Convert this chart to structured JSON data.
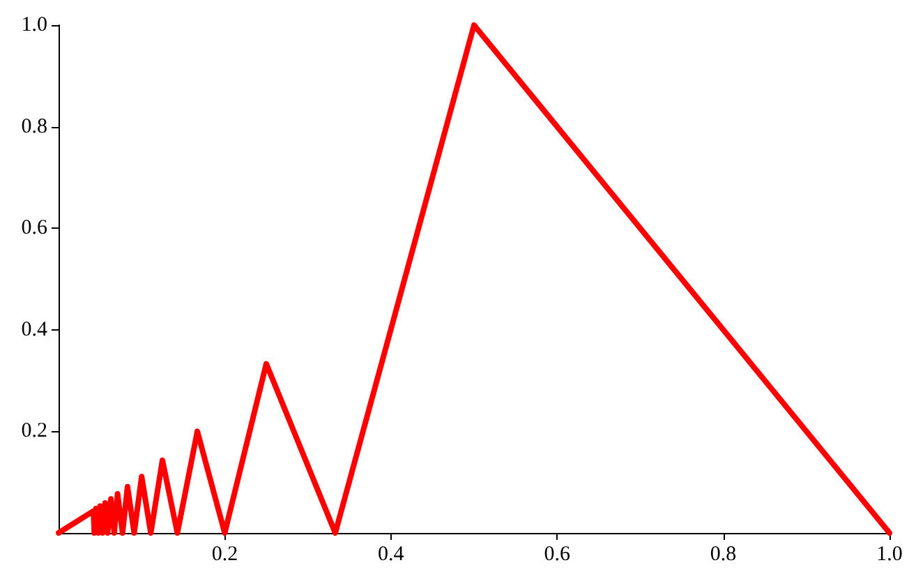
{
  "chart_data": {
    "type": "line",
    "x": [
      0,
      0.042,
      0.043,
      0.045,
      0.048,
      0.05,
      0.053,
      0.056,
      0.059,
      0.063,
      0.067,
      0.071,
      0.077,
      0.083,
      0.091,
      0.1,
      0.111,
      0.125,
      0.143,
      0.167,
      0.2,
      0.25,
      0.333,
      0.5,
      1
    ],
    "series": [
      {
        "color": "#ff0000",
        "values": [
          0,
          0.043,
          0,
          0.048,
          0,
          0.053,
          0,
          0.059,
          0,
          0.067,
          0,
          0.077,
          0,
          0.091,
          0,
          0.111,
          0,
          0.143,
          0,
          0.2,
          0,
          0.333,
          0,
          1,
          0
        ]
      }
    ],
    "xlim": [
      0,
      1
    ],
    "xticks": [
      0.2,
      0.4,
      0.6,
      0.8,
      {
        "value": 1,
        "label": "1.0"
      }
    ],
    "ylim": [
      0,
      1
    ],
    "yticks": [
      0.2,
      0.4,
      0.6,
      0.8,
      {
        "value": 1,
        "label": "1.0"
      }
    ],
    "grid": false,
    "marker": "none",
    "line_style": "solid"
  }
}
